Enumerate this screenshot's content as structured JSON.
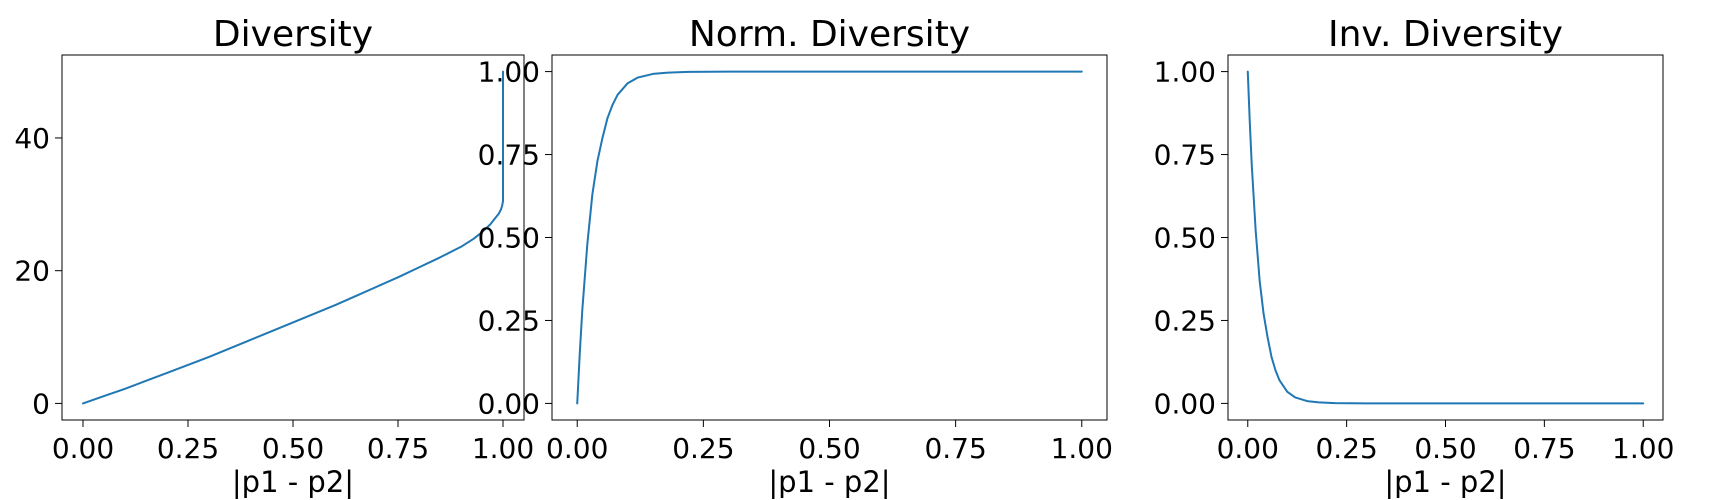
{
  "chart_data": [
    {
      "type": "line",
      "title": "Diversity",
      "xlabel": "|p1 - p2|",
      "ylabel": "",
      "xlim": [
        -0.05,
        1.05
      ],
      "ylim": [
        -2.5,
        52.5
      ],
      "xticks": [
        0.0,
        0.25,
        0.5,
        0.75,
        1.0
      ],
      "xtick_labels": [
        "0.00",
        "0.25",
        "0.50",
        "0.75",
        "1.00"
      ],
      "yticks": [
        0,
        20,
        40
      ],
      "ytick_labels": [
        "0",
        "20",
        "40"
      ],
      "grid": false,
      "series": [
        {
          "color": "#1f77b4",
          "x": [
            0.0,
            0.05,
            0.1,
            0.15,
            0.2,
            0.25,
            0.3,
            0.35,
            0.4,
            0.45,
            0.5,
            0.55,
            0.6,
            0.65,
            0.7,
            0.75,
            0.8,
            0.85,
            0.9,
            0.93,
            0.95,
            0.97,
            0.98,
            0.99,
            0.995,
            0.998,
            1.0,
            1.0
          ],
          "y": [
            0.0,
            1.1,
            2.2,
            3.4,
            4.6,
            5.8,
            7.0,
            8.3,
            9.6,
            10.9,
            12.2,
            13.5,
            14.8,
            16.2,
            17.6,
            19.0,
            20.5,
            22.0,
            23.6,
            24.8,
            25.8,
            27.0,
            27.8,
            28.6,
            29.2,
            29.8,
            30.5,
            50.0
          ]
        }
      ]
    },
    {
      "type": "line",
      "title": "Norm. Diversity",
      "xlabel": "|p1 - p2|",
      "ylabel": "",
      "xlim": [
        -0.05,
        1.05
      ],
      "ylim": [
        -0.05,
        1.05
      ],
      "xticks": [
        0.0,
        0.25,
        0.5,
        0.75,
        1.0
      ],
      "xtick_labels": [
        "0.00",
        "0.25",
        "0.50",
        "0.75",
        "1.00"
      ],
      "yticks": [
        0.0,
        0.25,
        0.5,
        0.75,
        1.0
      ],
      "ytick_labels": [
        "0.00",
        "0.25",
        "0.50",
        "0.75",
        "1.00"
      ],
      "grid": false,
      "series": [
        {
          "color": "#1f77b4",
          "x": [
            0.0,
            0.005,
            0.01,
            0.02,
            0.03,
            0.04,
            0.05,
            0.06,
            0.07,
            0.08,
            0.1,
            0.12,
            0.15,
            0.18,
            0.22,
            0.3,
            0.4,
            0.5,
            0.6,
            0.7,
            0.8,
            0.9,
            1.0
          ],
          "y": [
            0.0,
            0.15,
            0.28,
            0.48,
            0.63,
            0.73,
            0.8,
            0.86,
            0.9,
            0.93,
            0.965,
            0.982,
            0.993,
            0.997,
            0.999,
            1.0,
            1.0,
            1.0,
            1.0,
            1.0,
            1.0,
            1.0,
            1.0
          ]
        }
      ]
    },
    {
      "type": "line",
      "title": "Inv. Diversity",
      "xlabel": "|p1 - p2|",
      "ylabel": "",
      "xlim": [
        -0.05,
        1.05
      ],
      "ylim": [
        -0.05,
        1.05
      ],
      "xticks": [
        0.0,
        0.25,
        0.5,
        0.75,
        1.0
      ],
      "xtick_labels": [
        "0.00",
        "0.25",
        "0.50",
        "0.75",
        "1.00"
      ],
      "yticks": [
        0.0,
        0.25,
        0.5,
        0.75,
        1.0
      ],
      "ytick_labels": [
        "0.00",
        "0.25",
        "0.50",
        "0.75",
        "1.00"
      ],
      "grid": false,
      "series": [
        {
          "color": "#1f77b4",
          "x": [
            0.0,
            0.005,
            0.01,
            0.02,
            0.03,
            0.04,
            0.05,
            0.06,
            0.07,
            0.08,
            0.1,
            0.12,
            0.15,
            0.18,
            0.22,
            0.3,
            0.4,
            0.5,
            0.6,
            0.7,
            0.8,
            0.9,
            1.0
          ],
          "y": [
            1.0,
            0.85,
            0.72,
            0.52,
            0.37,
            0.27,
            0.2,
            0.14,
            0.1,
            0.07,
            0.035,
            0.018,
            0.007,
            0.003,
            0.001,
            0.0,
            0.0,
            0.0,
            0.0,
            0.0,
            0.0,
            0.0,
            0.0
          ]
        }
      ]
    }
  ]
}
